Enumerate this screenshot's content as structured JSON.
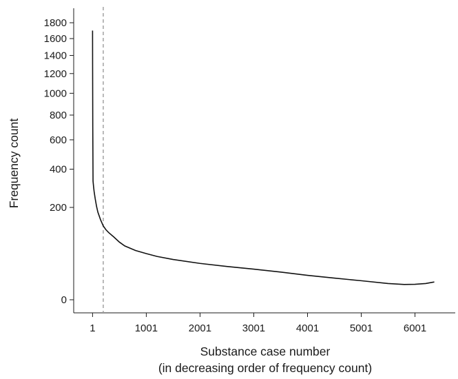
{
  "chart_data": {
    "type": "line",
    "title": "",
    "xlabel": "Substance case number",
    "xlabel_sub": "(in decreasing order of frequency count)",
    "ylabel": "Frequency count",
    "x_ticks": [
      1,
      1001,
      2001,
      3001,
      4001,
      5001,
      6001
    ],
    "y_ticks": [
      0,
      200,
      400,
      600,
      800,
      1000,
      1200,
      1400,
      1600,
      1800
    ],
    "y_scale": "sqrt",
    "xlim": [
      -350,
      6750
    ],
    "ylim": [
      0,
      1950
    ],
    "grid": false,
    "legend": "none",
    "reference_line": {
      "x": 200,
      "style": "dashed",
      "color": "#9a9a9a"
    },
    "series": [
      {
        "x": [
          1,
          2,
          5,
          10,
          20,
          30,
          50,
          75,
          100,
          150,
          200,
          250,
          300,
          400,
          500,
          600,
          800,
          1000,
          1200,
          1500,
          2000,
          2500,
          3000,
          3500,
          4000,
          4500,
          5000,
          5500,
          5800,
          6000,
          6200,
          6360
        ],
        "y": [
          1700,
          1300,
          700,
          330,
          300,
          275,
          240,
          205,
          180,
          150,
          128,
          115,
          106,
          92,
          78,
          68,
          57,
          50,
          44,
          38,
          31,
          26,
          22,
          18,
          14,
          11,
          8.5,
          6.2,
          5.5,
          5.6,
          6.2,
          7.4
        ]
      }
    ]
  }
}
